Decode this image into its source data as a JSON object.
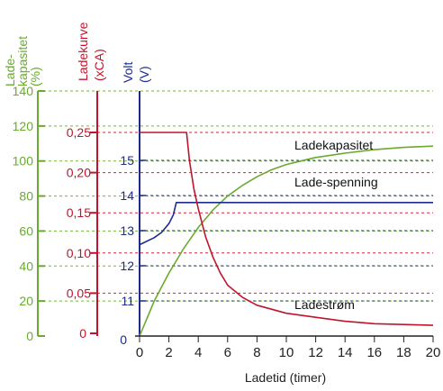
{
  "chart_data": {
    "type": "line",
    "xlabel": "Ladetid (timer)",
    "x_ticks": [
      0,
      2,
      4,
      6,
      8,
      10,
      12,
      14,
      16,
      18,
      20
    ],
    "xlim": [
      0,
      20
    ],
    "axes": {
      "capacity": {
        "title_lines": [
          "Lade-",
          "kapasitet",
          "(%)"
        ],
        "unit": "%",
        "range": [
          0,
          140
        ],
        "ticks": [
          "0",
          "20",
          "40",
          "60",
          "80",
          "100",
          "120",
          "140"
        ],
        "color": "#6aaa2e"
      },
      "current": {
        "title_lines": [
          "Ladekurve",
          "(xCA)"
        ],
        "unit": "xCA",
        "range": [
          0,
          0.28
        ],
        "ticks": [
          "0",
          "0,05",
          "0,10",
          "0,15",
          "0,20",
          "0,25"
        ],
        "color": "#c0142c"
      },
      "voltage": {
        "title_lines": [
          "Volt",
          "(V)"
        ],
        "unit": "V",
        "ticks": [
          "0",
          "11",
          "12",
          "13",
          "14",
          "15"
        ],
        "color": "#1d2b8f"
      }
    },
    "grid": "dashed horizontal lines at each tick of all three axes",
    "series": [
      {
        "name": "Ladekapasitet",
        "axis": "capacity",
        "color": "#6aaa2e",
        "points": [
          [
            0,
            0
          ],
          [
            0.5,
            10
          ],
          [
            1,
            20
          ],
          [
            1.5,
            28
          ],
          [
            2,
            36
          ],
          [
            2.5,
            43
          ],
          [
            3,
            50
          ],
          [
            3.5,
            56
          ],
          [
            4,
            62
          ],
          [
            5,
            72
          ],
          [
            6,
            80
          ],
          [
            7,
            86
          ],
          [
            8,
            91
          ],
          [
            9,
            95
          ],
          [
            10,
            98
          ],
          [
            11,
            100
          ],
          [
            12,
            102
          ],
          [
            14,
            104.5
          ],
          [
            16,
            106.5
          ],
          [
            18,
            107.8
          ],
          [
            20,
            108.5
          ]
        ]
      },
      {
        "name": "Lade-spenning",
        "axis": "voltage",
        "color": "#1d2b8f",
        "points": [
          [
            0,
            12.6
          ],
          [
            1,
            12.8
          ],
          [
            1.5,
            12.95
          ],
          [
            2,
            13.2
          ],
          [
            2.3,
            13.45
          ],
          [
            2.5,
            13.8
          ],
          [
            2.7,
            13.8
          ],
          [
            20,
            13.8
          ]
        ]
      },
      {
        "name": "Ladestrøm",
        "axis": "current",
        "color": "#c0142c",
        "points": [
          [
            0,
            0.25
          ],
          [
            3.2,
            0.25
          ],
          [
            3.4,
            0.215
          ],
          [
            3.7,
            0.18
          ],
          [
            4,
            0.155
          ],
          [
            4.5,
            0.12
          ],
          [
            5,
            0.095
          ],
          [
            5.5,
            0.075
          ],
          [
            6,
            0.06
          ],
          [
            7,
            0.045
          ],
          [
            8,
            0.035
          ],
          [
            10,
            0.025
          ],
          [
            12,
            0.02
          ],
          [
            14,
            0.015
          ],
          [
            16,
            0.012
          ],
          [
            18,
            0.011
          ],
          [
            20,
            0.01
          ]
        ]
      }
    ]
  }
}
